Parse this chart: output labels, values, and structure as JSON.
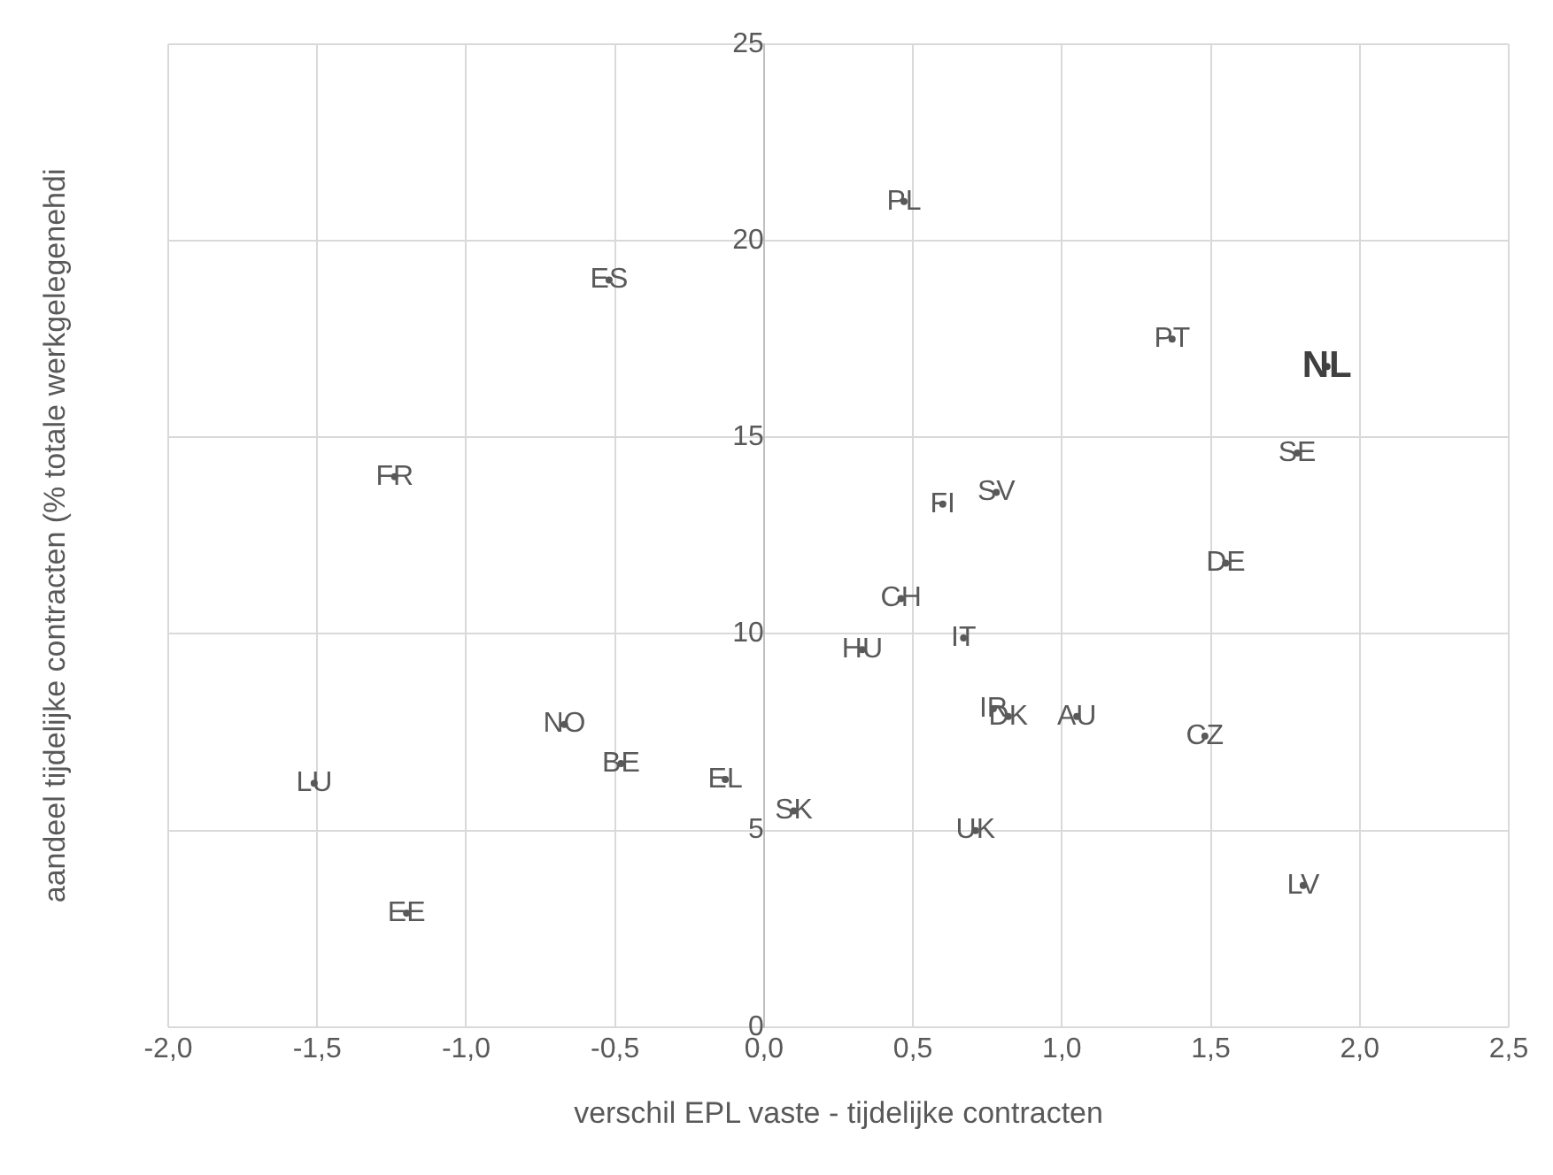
{
  "chart_data": {
    "type": "scatter",
    "xlabel": "verschil EPL vaste - tijdelijke contracten",
    "ylabel": "aandeel tijdelijke contracten (% totale werkgelegenehdi",
    "xlim": [
      -2,
      2.5
    ],
    "xticks": [
      {
        "value": -2,
        "label": "-2,0"
      },
      {
        "value": -1.5,
        "label": "-1,5"
      },
      {
        "value": -1,
        "label": "-1,0"
      },
      {
        "value": -0.5,
        "label": "-0,5"
      },
      {
        "value": 0,
        "label": "0,0"
      },
      {
        "value": 0.5,
        "label": "0,5"
      },
      {
        "value": 1,
        "label": "1,0"
      },
      {
        "value": 1.5,
        "label": "1,5"
      },
      {
        "value": 2,
        "label": "2,0"
      },
      {
        "value": 2.5,
        "label": "2,5"
      }
    ],
    "ylim": [
      0,
      25
    ],
    "yticks": [
      0,
      5,
      10,
      15,
      20,
      25
    ],
    "grid": true,
    "series": [
      {
        "color": "#595959",
        "x": [
          0.47,
          -0.52,
          1.37,
          1.79,
          -1.24,
          0.6,
          0.78,
          1.55,
          0.46,
          0.67,
          0.33,
          0.77,
          0.82,
          1.05,
          -0.67,
          -0.48,
          1.48,
          -1.51,
          -0.13,
          0.1,
          0.71,
          1.81,
          -1.2
        ],
        "values": [
          21.0,
          19.0,
          17.5,
          14.6,
          14.0,
          13.3,
          13.6,
          11.8,
          10.9,
          9.9,
          9.6,
          8.1,
          7.9,
          7.9,
          7.7,
          6.7,
          7.4,
          6.2,
          6.3,
          5.5,
          5.0,
          3.6,
          2.9
        ],
        "value_labels": [
          "PL",
          "ES",
          "PT",
          "SE",
          "FR",
          "FI",
          "SV",
          "DE",
          "CH",
          "IT",
          "HU",
          "IR",
          "DK",
          "AU",
          "NO",
          "BE",
          "CZ",
          "LU",
          "EL",
          "SK",
          "UK",
          "LV",
          "EE"
        ]
      },
      {
        "color": "#404040",
        "x": [
          1.89
        ],
        "values": [
          16.8
        ],
        "value_labels": [
          "NL"
        ]
      }
    ]
  }
}
